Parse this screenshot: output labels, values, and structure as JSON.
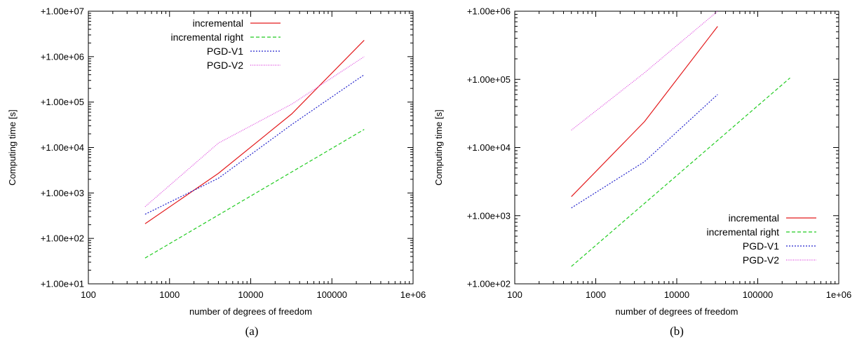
{
  "colors": {
    "incremental": "#e31a1c",
    "incremental_right": "#22cc22",
    "pgd_v1": "#2222cc",
    "pgd_v2": "#dd44dd"
  },
  "chart_data": [
    {
      "type": "line",
      "caption": "(a)",
      "xlabel": "number of degrees of freedom",
      "ylabel": "Computing time [s]",
      "xscale": "log",
      "yscale": "log",
      "xlim": [
        100,
        1000000
      ],
      "ylim": [
        10,
        10000000
      ],
      "xticks": [
        100,
        1000,
        10000,
        100000,
        1000000
      ],
      "xtick_labels": [
        "100",
        "1000",
        "10000",
        "100000",
        "1e+06"
      ],
      "yticks": [
        10,
        100,
        1000,
        10000,
        100000,
        1000000,
        10000000
      ],
      "ytick_labels": [
        "+1.00e+01",
        "+1.00e+02",
        "+1.00e+03",
        "+1.00e+04",
        "+1.00e+05",
        "+1.00e+06",
        "+1.00e+07"
      ],
      "legend_position": "top-left",
      "grid": false,
      "series": [
        {
          "name": "incremental",
          "color_key": "incremental",
          "dash": "solid",
          "x": [
            500,
            4000,
            32000,
            250000
          ],
          "y": [
            210,
            2700,
            55000,
            2300000
          ]
        },
        {
          "name": "incremental right",
          "color_key": "incremental_right",
          "dash": "dashed",
          "x": [
            500,
            250000
          ],
          "y": [
            37,
            25000
          ]
        },
        {
          "name": "PGD-V1",
          "color_key": "pgd_v1",
          "dash": "dotted",
          "x": [
            500,
            4000,
            32000,
            250000
          ],
          "y": [
            340,
            2100,
            32000,
            400000
          ]
        },
        {
          "name": "PGD-V2",
          "color_key": "pgd_v2",
          "dash": "finedotted",
          "x": [
            500,
            4000,
            32000,
            250000
          ],
          "y": [
            500,
            12500,
            90000,
            1000000
          ]
        }
      ]
    },
    {
      "type": "line",
      "caption": "(b)",
      "xlabel": "number of degrees of freedom",
      "ylabel": "Computing time [s]",
      "xscale": "log",
      "yscale": "log",
      "xlim": [
        100,
        1000000
      ],
      "ylim": [
        100,
        1000000
      ],
      "xticks": [
        100,
        1000,
        10000,
        100000,
        1000000
      ],
      "xtick_labels": [
        "100",
        "1000",
        "10000",
        "100000",
        "1e+06"
      ],
      "yticks": [
        100,
        1000,
        10000,
        100000,
        1000000
      ],
      "ytick_labels": [
        "+1.00e+02",
        "+1.00e+03",
        "+1.00e+04",
        "+1.00e+05",
        "+1.00e+06"
      ],
      "legend_position": "bottom-right",
      "grid": false,
      "series": [
        {
          "name": "incremental",
          "color_key": "incremental",
          "dash": "solid",
          "x": [
            500,
            4000,
            32000
          ],
          "y": [
            1900,
            24000,
            600000
          ]
        },
        {
          "name": "incremental right",
          "color_key": "incremental_right",
          "dash": "dashed",
          "x": [
            500,
            250000
          ],
          "y": [
            180,
            105000
          ]
        },
        {
          "name": "PGD-V1",
          "color_key": "pgd_v1",
          "dash": "dotted",
          "x": [
            500,
            4000,
            32000
          ],
          "y": [
            1300,
            6200,
            60000
          ]
        },
        {
          "name": "PGD-V2",
          "color_key": "pgd_v2",
          "dash": "finedotted",
          "x": [
            500,
            4000,
            32000
          ],
          "y": [
            18000,
            125000,
            1000000
          ]
        }
      ]
    }
  ]
}
